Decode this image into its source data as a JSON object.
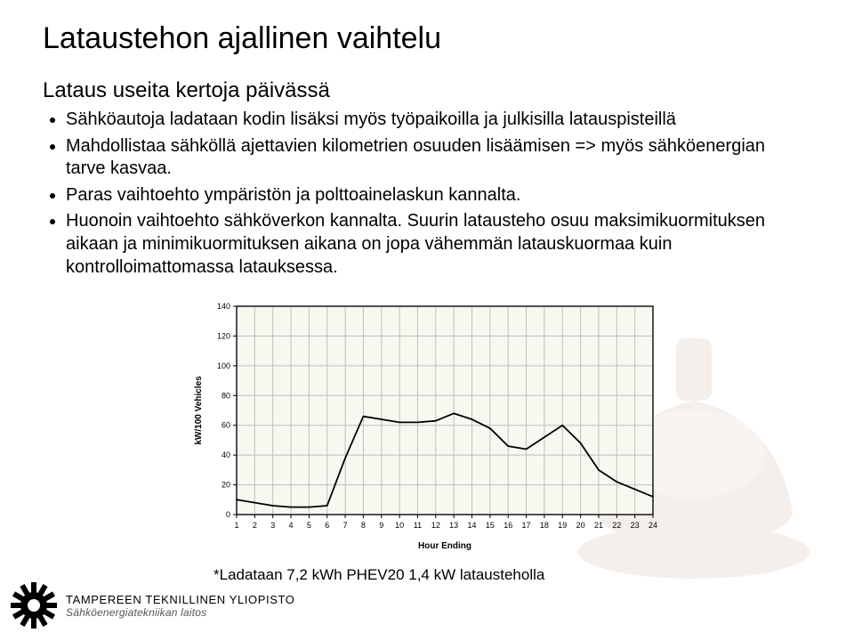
{
  "title": "Lataustehon ajallinen vaihtelu",
  "subtitle": "Lataus useita kertoja päivässä",
  "bullets": [
    "Sähköautoja ladataan kodin lisäksi myös työpaikoilla ja julkisilla latauspisteillä",
    "Mahdollistaa sähköllä ajettavien kilometrien osuuden lisäämisen => myös sähköenergian tarve kasvaa.",
    "Paras vaihtoehto ympäristön ja polttoainelaskun kannalta.",
    "Huonoin vaihtoehto sähköverkon kannalta. Suurin latausteho osuu maksimikuormituksen aikaan ja minimikuormituksen aikana on jopa vähemmän latauskuormaa kuin kontrolloimattomassa latauksessa."
  ],
  "chart": {
    "type": "line",
    "xlabel": "Hour Ending",
    "ylabel": "kW/100 Vehicles",
    "x_ticks": [
      1,
      2,
      3,
      4,
      5,
      6,
      7,
      8,
      9,
      10,
      11,
      12,
      13,
      14,
      15,
      16,
      17,
      18,
      19,
      20,
      21,
      22,
      23,
      24
    ],
    "y_ticks": [
      0,
      20,
      40,
      60,
      80,
      100,
      120,
      140
    ],
    "xlim": [
      1,
      24
    ],
    "ylim": [
      0,
      140
    ],
    "line_color": "#000000",
    "line_width": 1.8,
    "grid_color": "#bfbfbf",
    "background_color": "#f7f8f0",
    "axis_color": "#000000",
    "tick_fontsize": 9,
    "label_fontsize": 10,
    "label_weight": "bold",
    "values": [
      10,
      8,
      6,
      5,
      5,
      6,
      38,
      66,
      64,
      62,
      62,
      63,
      68,
      64,
      58,
      46,
      44,
      52,
      60,
      48,
      30,
      22,
      17,
      12
    ]
  },
  "footnote": "*Ladataan 7,2 kWh PHEV20 1,4 kW latausteholla",
  "footer": {
    "line1": "TAMPEREEN TEKNILLINEN YLIOPISTO",
    "line2": "Sähköenergiatekniikan laitos"
  }
}
